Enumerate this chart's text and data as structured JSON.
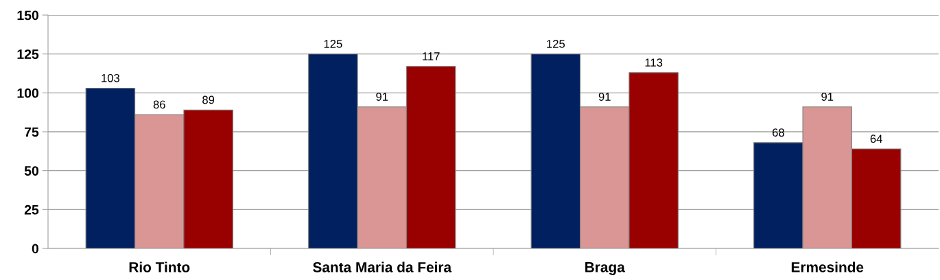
{
  "chart_data": {
    "type": "bar",
    "categories": [
      "Rio Tinto",
      "Santa Maria da Feira",
      "Braga",
      "Ermesinde"
    ],
    "series": [
      {
        "color": "#002060",
        "values": [
          103,
          125,
          125,
          68
        ]
      },
      {
        "color": "#d99694",
        "values": [
          86,
          91,
          91,
          91
        ]
      },
      {
        "color": "#990000",
        "values": [
          89,
          117,
          113,
          64
        ]
      }
    ],
    "ylim": [
      0,
      150
    ],
    "yticks": [
      0,
      25,
      50,
      75,
      100,
      125,
      150
    ],
    "grid": "y",
    "data_labels": true
  }
}
